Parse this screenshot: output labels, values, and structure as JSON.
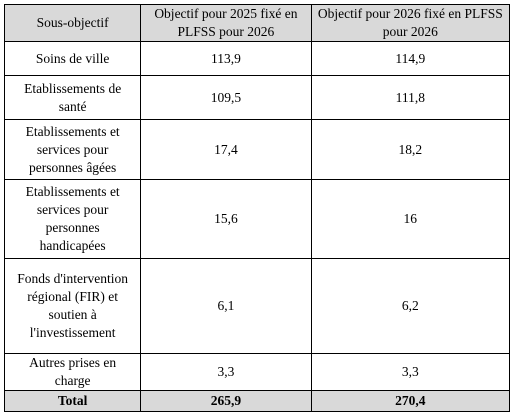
{
  "table": {
    "header": [
      "Sous-objectif",
      "Objectif pour 2025 fixé en PLFSS pour 2026",
      "Objectif pour 2026 fixé en PLFSS pour 2026"
    ],
    "rows": [
      [
        "Soins de ville",
        "113,9",
        "114,9"
      ],
      [
        "Etablissements de santé",
        "109,5",
        "111,8"
      ],
      [
        "Etablissements et services pour personnes âgées",
        "17,4",
        "18,2"
      ],
      [
        "Etablissements et services pour personnes handicapées",
        "15,6",
        "16"
      ],
      [
        "Fonds d'intervention régional (FIR) et soutien à l'investissement",
        "6,1",
        "6,2"
      ],
      [
        "Autres prises en charge",
        "3,3",
        "3,3"
      ],
      [
        "Total",
        "265,9",
        "270,4"
      ]
    ]
  }
}
